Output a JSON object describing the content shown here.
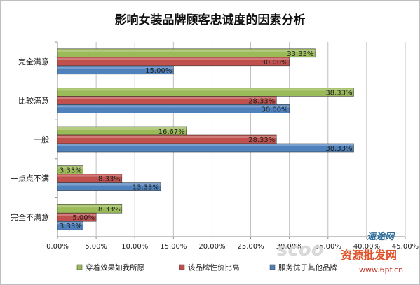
{
  "chart_data": {
    "type": "bar",
    "orientation": "horizontal",
    "title": "影响女装品牌顾客忠诚度的因素分析",
    "categories": [
      "完全满意",
      "比较满意",
      "一般",
      "一点点不满",
      "完全不满意"
    ],
    "series": [
      {
        "name": "穿着效果如我所愿",
        "color": "#9bbb59",
        "values": [
          33.33,
          38.33,
          16.67,
          3.33,
          8.33
        ]
      },
      {
        "name": "该品牌性价比高",
        "color": "#c0504d",
        "values": [
          30.0,
          28.33,
          28.33,
          8.33,
          5.0
        ]
      },
      {
        "name": "服务优于其他品牌",
        "color": "#4f81bd",
        "values": [
          15.0,
          30.0,
          38.33,
          13.33,
          3.33
        ]
      }
    ],
    "data_labels": [
      [
        "33.33%",
        "30.00%",
        "15.00%"
      ],
      [
        "38.33%",
        "28.33%",
        "30.00%"
      ],
      [
        "16.67%",
        "28.33%",
        "38.33%"
      ],
      [
        "3.33%",
        "8.33%",
        "13.33%"
      ],
      [
        "8.33%",
        "5.00%",
        "3.33%"
      ]
    ],
    "xlim": [
      0,
      45
    ],
    "xticks": [
      "0.00%",
      "5.00%",
      "10.00%",
      "15.00%",
      "20.00%",
      "25.00%",
      "30.00%",
      "35.00%",
      "40.00%",
      "45.00%"
    ],
    "grid": true,
    "legend_position": "bottom"
  },
  "watermark": {
    "text1": "速途网",
    "text2": "资源批发网",
    "text3": "www.6pf.cn",
    "text4": "scoo"
  }
}
